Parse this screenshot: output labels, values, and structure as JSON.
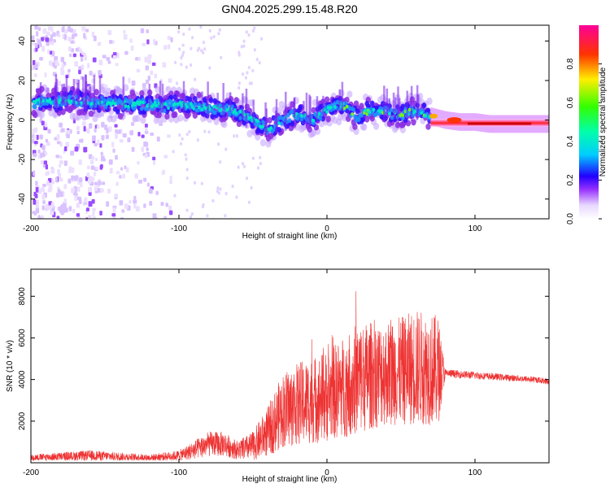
{
  "title": "GN04.2025.299.15.48.R20",
  "colors": {
    "snr_line": "#ee3333",
    "frame": "#000000",
    "background": "#ffffff"
  },
  "chart_data": [
    {
      "type": "heatmap",
      "title": "GN04.2025.299.15.48.R20",
      "xlabel": "Height of straight line (km)",
      "ylabel": "Frequency (Hz)",
      "xlim": [
        -200,
        150
      ],
      "ylim": [
        -50,
        48
      ],
      "xticks": [
        -200,
        -100,
        0,
        100
      ],
      "yticks": [
        -40,
        -20,
        0,
        20,
        40
      ],
      "ridge": {
        "x": [
          -200,
          -190,
          -180,
          -170,
          -160,
          -150,
          -140,
          -130,
          -120,
          -110,
          -100,
          -90,
          -80,
          -70,
          -60,
          -50,
          -40,
          -30,
          -20,
          -10,
          0,
          10,
          20,
          30,
          40,
          50,
          60,
          70,
          80,
          90,
          100,
          110,
          120,
          130,
          140,
          150
        ],
        "y": [
          8,
          10,
          9,
          10,
          9,
          9,
          8,
          8,
          8,
          7,
          8,
          7,
          6,
          6,
          4,
          0,
          -5,
          0,
          3,
          0,
          5,
          8,
          2,
          5,
          4,
          3,
          5,
          2,
          0,
          -1,
          -1,
          -2,
          -2,
          -2,
          -2,
          -2
        ]
      },
      "colorbar": {
        "label": "Normalized spectral amplitude",
        "ticks": [
          0.0,
          0.2,
          0.4,
          0.6,
          0.8
        ],
        "range": [
          0,
          1
        ]
      }
    },
    {
      "type": "line",
      "xlabel": "Height of straight line (km)",
      "ylabel": "SNR (10 * v/v)",
      "xlim": [
        -200,
        150
      ],
      "ylim": [
        0,
        9300
      ],
      "xticks": [
        -200,
        -100,
        0,
        100
      ],
      "yticks": [
        2000,
        4000,
        6000,
        8000
      ],
      "envelope": {
        "x": [
          -200,
          -180,
          -160,
          -140,
          -120,
          -100,
          -90,
          -80,
          -70,
          -60,
          -50,
          -40,
          -30,
          -20,
          -10,
          0,
          10,
          20,
          30,
          40,
          50,
          60,
          70,
          75,
          80,
          100,
          120,
          140,
          150
        ],
        "mean": [
          250,
          300,
          350,
          300,
          250,
          350,
          600,
          900,
          900,
          600,
          800,
          1500,
          2500,
          2800,
          3000,
          3200,
          3600,
          4000,
          4200,
          4300,
          4400,
          4600,
          4500,
          4400,
          4300,
          4200,
          4100,
          4000,
          3900
        ],
        "amplitude": [
          150,
          200,
          250,
          200,
          150,
          250,
          450,
          600,
          600,
          450,
          700,
          1200,
          1800,
          2000,
          2100,
          2200,
          2400,
          2700,
          2600,
          2500,
          2600,
          2800,
          2700,
          2700,
          200,
          180,
          160,
          150,
          150
        ]
      }
    }
  ]
}
